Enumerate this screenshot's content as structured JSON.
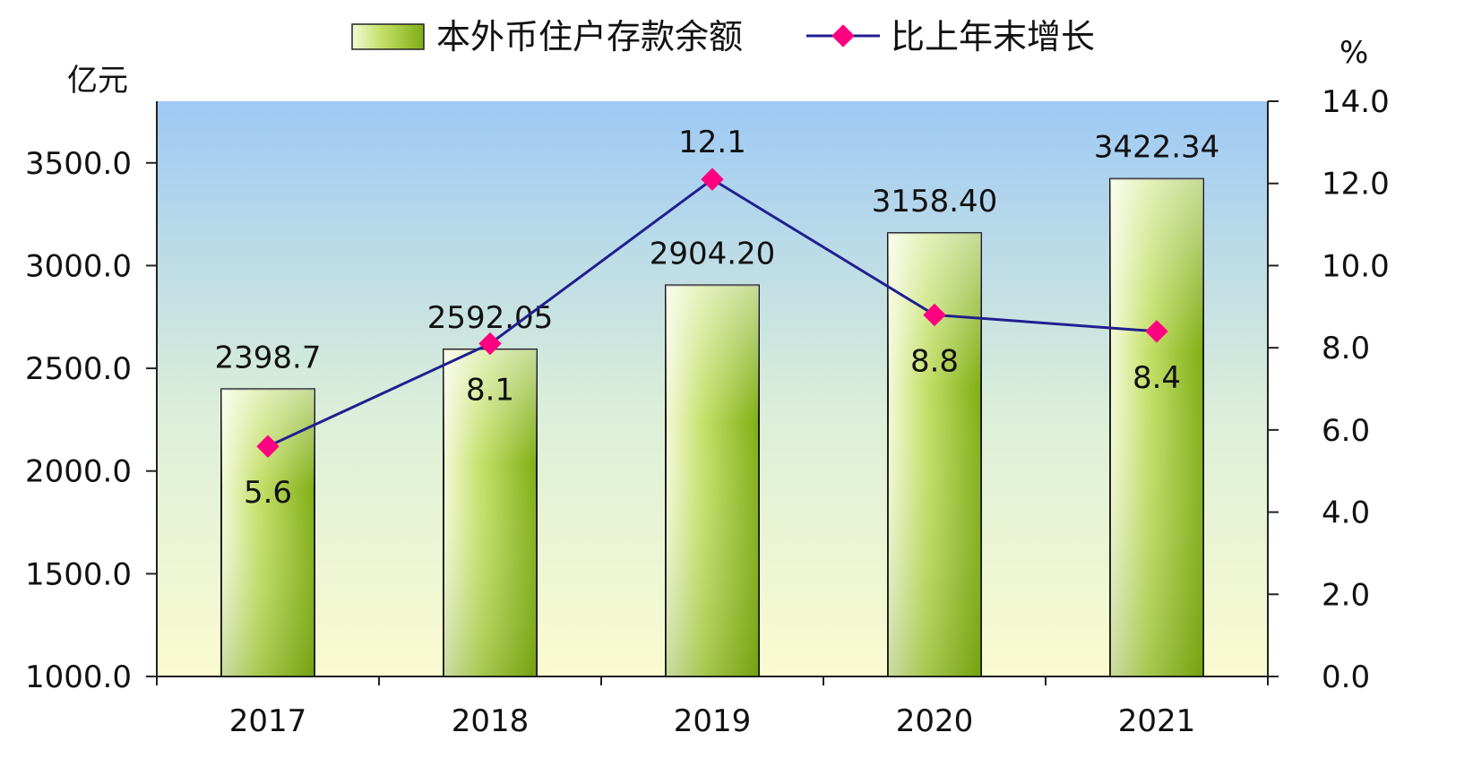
{
  "chart_data": {
    "type": "bar",
    "categories": [
      "2017",
      "2018",
      "2019",
      "2020",
      "2021"
    ],
    "series": [
      {
        "name": "本外币住户存款余额",
        "type": "bar",
        "axis": "left",
        "values": [
          2398.7,
          2592.05,
          2904.2,
          3158.4,
          3422.34
        ],
        "labels": [
          "2398.7",
          "2592.05",
          "2904.20",
          "3158.40",
          "3422.34"
        ],
        "color": "#8fbf1f"
      },
      {
        "name": "比上年末增长",
        "type": "line",
        "axis": "right",
        "values": [
          5.6,
          8.1,
          12.1,
          8.8,
          8.4
        ],
        "labels": [
          "5.6",
          "8.1",
          "12.1",
          "8.8",
          "8.4"
        ],
        "color": "#1f1f8f",
        "marker_color": "#ff0080"
      }
    ],
    "y_left": {
      "unit": "亿元",
      "min": 1000,
      "max": 3800,
      "ticks": [
        1000,
        1500,
        2000,
        2500,
        3000,
        3500
      ],
      "tick_labels": [
        "1000.0",
        "1500.0",
        "2000.0",
        "2500.0",
        "3000.0",
        "3500.0"
      ]
    },
    "y_right": {
      "unit": "%",
      "min": 0,
      "max": 14,
      "ticks": [
        0,
        2,
        4,
        6,
        8,
        10,
        12,
        14
      ],
      "tick_labels": [
        "0.0",
        "2.0",
        "4.0",
        "6.0",
        "8.0",
        "10.0",
        "12.0",
        "14.0"
      ]
    },
    "legend_position": "top",
    "grid": false,
    "background_gradient": [
      "#9ec9f5",
      "#fbfbd0"
    ]
  }
}
